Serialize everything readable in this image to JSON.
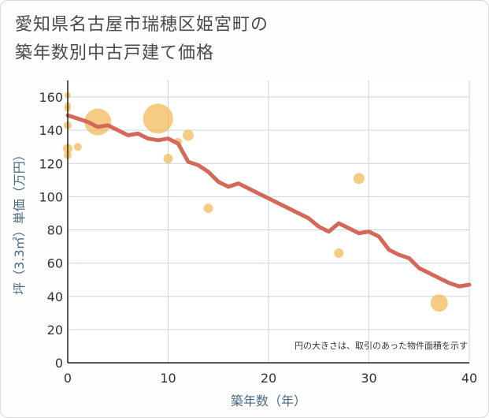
{
  "chart_data": {
    "type": "scatter",
    "title_lines": [
      "愛知県名古屋市瑞穂区姫宮町の",
      "築年数別中古戸建て価格"
    ],
    "xlabel": "築年数（年）",
    "ylabel": "坪（3.3㎡）単価（万円）",
    "xlim": [
      0,
      40
    ],
    "ylim": [
      0,
      170
    ],
    "xticks": [
      0,
      10,
      20,
      30,
      40
    ],
    "yticks": [
      0,
      20,
      40,
      60,
      80,
      100,
      120,
      140,
      160
    ],
    "note": "円の大きさは、取引のあった物件面積を示す",
    "colors": {
      "bubble": "#f2b650",
      "line": "#d4695a",
      "grid": "#c9d6e3"
    },
    "scatter": [
      {
        "x": 0,
        "y": 161,
        "size": 4
      },
      {
        "x": 0,
        "y": 155,
        "size": 4
      },
      {
        "x": 0,
        "y": 153,
        "size": 4
      },
      {
        "x": 0,
        "y": 143,
        "size": 5
      },
      {
        "x": 0,
        "y": 129,
        "size": 6
      },
      {
        "x": 0,
        "y": 125,
        "size": 5
      },
      {
        "x": 1,
        "y": 130,
        "size": 5
      },
      {
        "x": 3,
        "y": 145,
        "size": 17
      },
      {
        "x": 9,
        "y": 147,
        "size": 19
      },
      {
        "x": 10,
        "y": 123,
        "size": 6
      },
      {
        "x": 11,
        "y": 133,
        "size": 5
      },
      {
        "x": 12,
        "y": 137,
        "size": 7
      },
      {
        "x": 14,
        "y": 93,
        "size": 6
      },
      {
        "x": 27,
        "y": 66,
        "size": 6
      },
      {
        "x": 29,
        "y": 111,
        "size": 7
      },
      {
        "x": 37,
        "y": 36,
        "size": 11
      }
    ],
    "trend": {
      "x": [
        0,
        1,
        2,
        3,
        4,
        5,
        6,
        7,
        8,
        9,
        10,
        11,
        12,
        13,
        14,
        15,
        16,
        17,
        18,
        19,
        20,
        21,
        22,
        23,
        24,
        25,
        26,
        27,
        28,
        29,
        30,
        31,
        32,
        33,
        34,
        35,
        36,
        37,
        38,
        39,
        40
      ],
      "y": [
        149,
        147,
        145,
        142,
        143,
        140,
        137,
        138,
        135,
        134,
        135,
        132,
        121,
        119,
        115,
        109,
        106,
        108,
        105,
        102,
        99,
        96,
        93,
        90,
        87,
        82,
        79,
        84,
        81,
        78,
        79,
        76,
        68,
        65,
        63,
        57,
        54,
        51,
        48,
        46,
        47
      ]
    }
  }
}
